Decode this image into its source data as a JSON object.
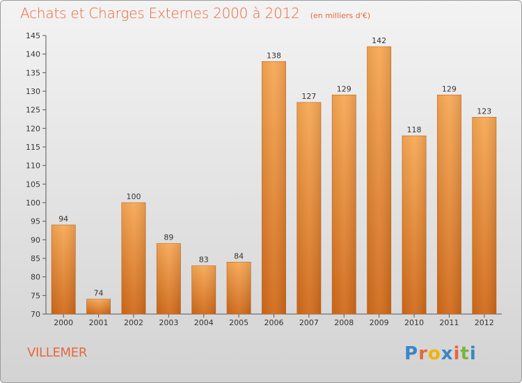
{
  "header": {
    "title": "Achats et Charges Externes 2000 à 2012",
    "subtitle": "(en milliers d'€)"
  },
  "footer": {
    "place": "VILLEMER",
    "logo_text": "Proxiti",
    "logo_colors": [
      "#3a86c8",
      "#e8673a",
      "#f0b400",
      "#3a86c8",
      "#e8673a",
      "#7cb342",
      "#3a86c8"
    ]
  },
  "colors": {
    "bar_top": "#f7a855",
    "bar_bottom": "#d06a1a",
    "accent": "#e8673a"
  },
  "chart_data": {
    "type": "bar",
    "title": "Achats et Charges Externes 2000 à 2012",
    "subtitle": "(en milliers d'€)",
    "categories": [
      "2000",
      "2001",
      "2002",
      "2003",
      "2004",
      "2005",
      "2006",
      "2007",
      "2008",
      "2009",
      "2010",
      "2011",
      "2012"
    ],
    "values": [
      94,
      74,
      100,
      89,
      83,
      84,
      138,
      127,
      129,
      142,
      118,
      129,
      123
    ],
    "ylim": [
      70,
      145
    ],
    "yticks": [
      70,
      75,
      80,
      85,
      90,
      95,
      100,
      105,
      110,
      115,
      120,
      125,
      130,
      135,
      140,
      145
    ],
    "xlabel": "",
    "ylabel": "",
    "grid": false,
    "legend": "none",
    "data_labels": true
  }
}
